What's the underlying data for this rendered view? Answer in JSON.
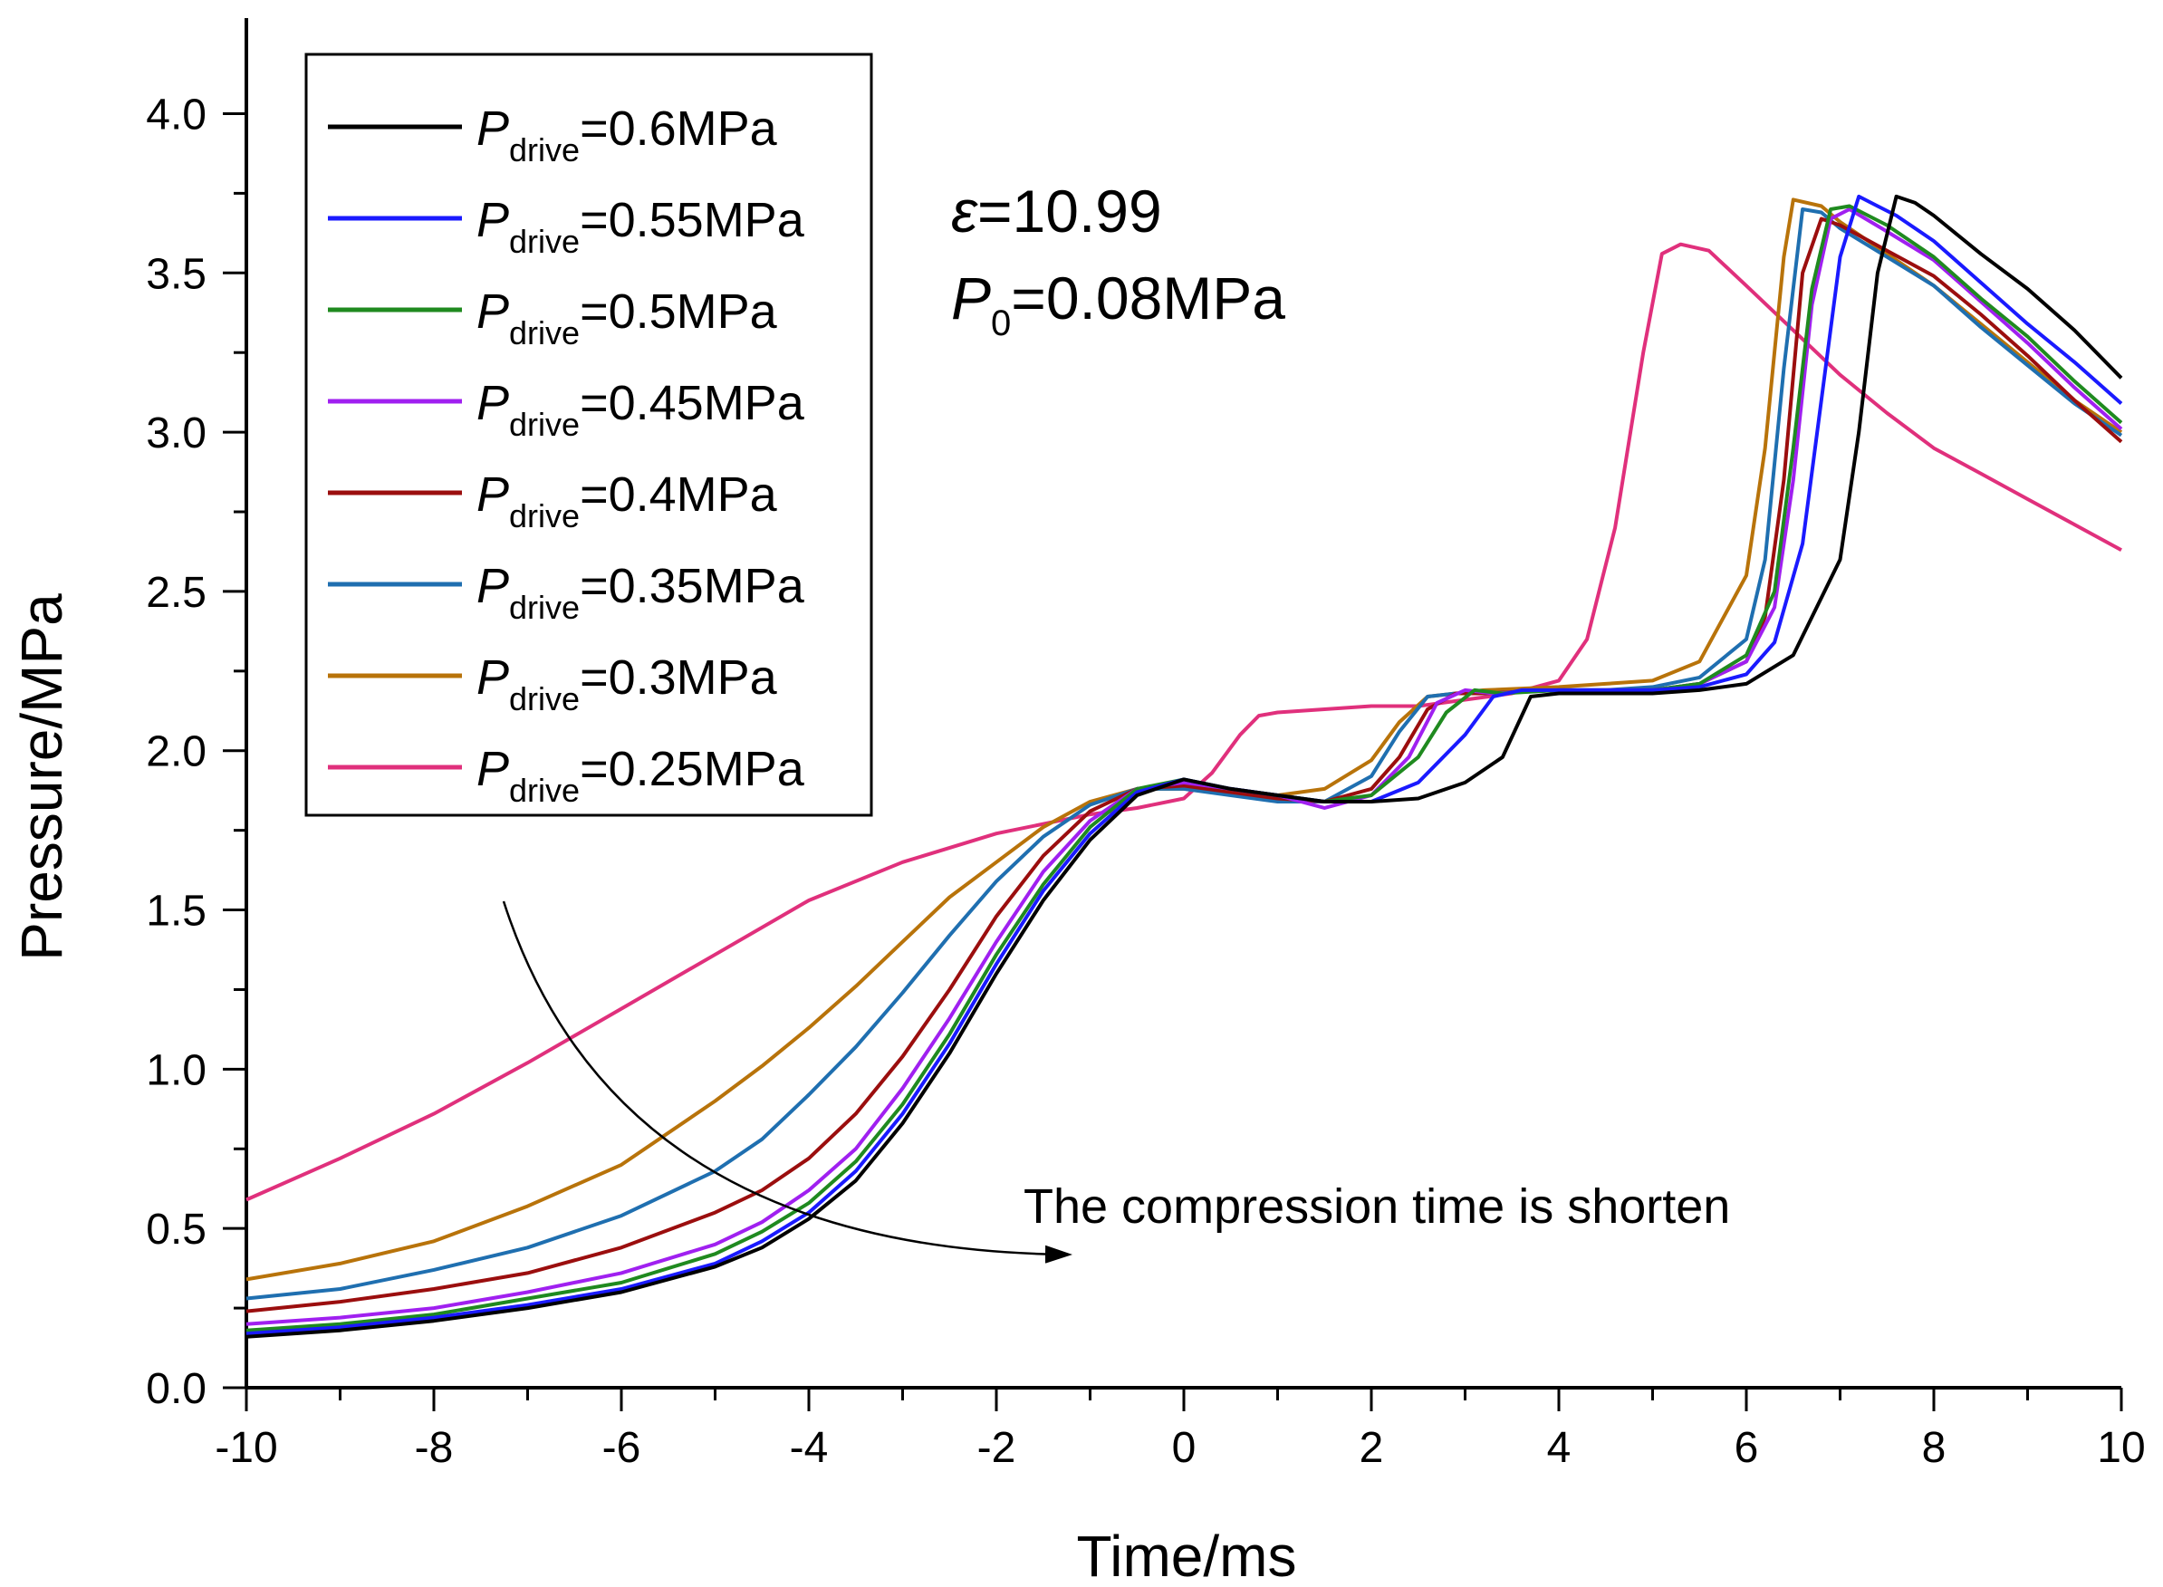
{
  "chart_data": {
    "type": "line",
    "title": "",
    "xlabel": "Time/ms",
    "ylabel": "Pressure/MPa",
    "xlim": [
      -10,
      10
    ],
    "ylim": [
      0.0,
      4.3
    ],
    "x_ticks": [
      "-10",
      "-8",
      "-6",
      "-4",
      "-2",
      "0",
      "2",
      "4",
      "6",
      "8",
      "10"
    ],
    "y_ticks": [
      "0.0",
      "0.5",
      "1.0",
      "1.5",
      "2.0",
      "2.5",
      "3.0",
      "3.5",
      "4.0"
    ],
    "legend_position": "top-left",
    "legend_symbol": "P",
    "legend_subscript": "drive",
    "annotations": {
      "epsilon_symbol": "ε",
      "epsilon_value": "=10.99",
      "p0_symbol": "P",
      "p0_sub": "0",
      "p0_value": "=0.08MPa",
      "note": "The compression time is shorten"
    },
    "series": [
      {
        "name": "=0.6MPa",
        "color": "#000000",
        "x": [
          -10,
          -9,
          -8,
          -7,
          -6,
          -5,
          -4.5,
          -4,
          -3.5,
          -3,
          -2.5,
          -2,
          -1.5,
          -1,
          -0.5,
          0,
          0.5,
          1,
          1.5,
          2,
          2.5,
          3,
          3.4,
          3.7,
          4,
          4.5,
          5,
          5.5,
          6,
          6.5,
          7,
          7.2,
          7.4,
          7.6,
          7.8,
          8,
          8.5,
          9,
          9.5,
          10
        ],
        "y": [
          0.16,
          0.18,
          0.21,
          0.25,
          0.3,
          0.38,
          0.44,
          0.53,
          0.65,
          0.83,
          1.05,
          1.3,
          1.53,
          1.72,
          1.86,
          1.91,
          1.88,
          1.86,
          1.84,
          1.84,
          1.85,
          1.9,
          1.98,
          2.17,
          2.18,
          2.18,
          2.18,
          2.19,
          2.21,
          2.3,
          2.6,
          3.0,
          3.5,
          3.74,
          3.72,
          3.68,
          3.56,
          3.45,
          3.32,
          3.17
        ]
      },
      {
        "name": "=0.55MPa",
        "color": "#1a1aff",
        "x": [
          -10,
          -9,
          -8,
          -7,
          -6,
          -5,
          -4.5,
          -4,
          -3.5,
          -3,
          -2.5,
          -2,
          -1.5,
          -1,
          -0.5,
          0,
          0.5,
          1,
          1.5,
          2,
          2.5,
          3,
          3.3,
          3.6,
          4,
          4.5,
          5,
          5.5,
          6,
          6.3,
          6.6,
          6.8,
          7,
          7.2,
          7.4,
          7.6,
          8,
          8.5,
          9,
          9.5,
          10
        ],
        "y": [
          0.17,
          0.19,
          0.22,
          0.26,
          0.31,
          0.39,
          0.46,
          0.55,
          0.68,
          0.86,
          1.08,
          1.33,
          1.56,
          1.74,
          1.87,
          1.91,
          1.88,
          1.86,
          1.84,
          1.84,
          1.9,
          2.05,
          2.17,
          2.19,
          2.19,
          2.19,
          2.19,
          2.2,
          2.24,
          2.34,
          2.65,
          3.1,
          3.55,
          3.74,
          3.71,
          3.68,
          3.6,
          3.47,
          3.34,
          3.22,
          3.09
        ]
      },
      {
        "name": "=0.5MPa",
        "color": "#1f8a1f",
        "x": [
          -10,
          -9,
          -8,
          -7,
          -6,
          -5,
          -4.5,
          -4,
          -3.5,
          -3,
          -2.5,
          -2,
          -1.5,
          -1,
          -0.5,
          0,
          0.5,
          1,
          1.5,
          2,
          2.5,
          2.8,
          3.1,
          3.4,
          4,
          4.5,
          5,
          5.5,
          6,
          6.3,
          6.5,
          6.7,
          6.9,
          7.1,
          7.5,
          8,
          8.5,
          9,
          9.5,
          10
        ],
        "y": [
          0.18,
          0.2,
          0.23,
          0.28,
          0.33,
          0.42,
          0.49,
          0.58,
          0.71,
          0.89,
          1.11,
          1.36,
          1.58,
          1.76,
          1.88,
          1.91,
          1.88,
          1.86,
          1.84,
          1.86,
          1.98,
          2.12,
          2.19,
          2.18,
          2.19,
          2.19,
          2.19,
          2.21,
          2.3,
          2.5,
          2.95,
          3.45,
          3.7,
          3.71,
          3.65,
          3.55,
          3.42,
          3.3,
          3.16,
          3.03
        ]
      },
      {
        "name": "=0.45MPa",
        "color": "#a020f0",
        "x": [
          -10,
          -9,
          -8,
          -7,
          -6,
          -5,
          -4.5,
          -4,
          -3.5,
          -3,
          -2.5,
          -2,
          -1.5,
          -1,
          -0.5,
          0,
          0.5,
          1,
          1.5,
          2,
          2.4,
          2.7,
          3,
          3.3,
          4,
          4.5,
          5,
          5.5,
          6,
          6.3,
          6.5,
          6.7,
          6.9,
          7.1,
          7.5,
          8,
          8.5,
          9,
          9.5,
          10
        ],
        "y": [
          0.2,
          0.22,
          0.25,
          0.3,
          0.36,
          0.45,
          0.52,
          0.62,
          0.75,
          0.94,
          1.16,
          1.4,
          1.62,
          1.78,
          1.88,
          1.9,
          1.88,
          1.86,
          1.82,
          1.86,
          1.98,
          2.15,
          2.19,
          2.18,
          2.19,
          2.19,
          2.19,
          2.21,
          2.28,
          2.45,
          2.85,
          3.4,
          3.67,
          3.7,
          3.63,
          3.54,
          3.41,
          3.28,
          3.14,
          3.01
        ]
      },
      {
        "name": "=0.4MPa",
        "color": "#9b0e0e",
        "x": [
          -10,
          -9,
          -8,
          -7,
          -6,
          -5,
          -4.5,
          -4,
          -3.5,
          -3,
          -2.5,
          -2,
          -1.5,
          -1,
          -0.5,
          0,
          0.5,
          1,
          1.5,
          2,
          2.3,
          2.6,
          2.9,
          3.2,
          4,
          4.5,
          5,
          5.5,
          6,
          6.2,
          6.4,
          6.6,
          6.8,
          7,
          7.5,
          8,
          8.5,
          9,
          9.5,
          10
        ],
        "y": [
          0.24,
          0.27,
          0.31,
          0.36,
          0.44,
          0.55,
          0.62,
          0.72,
          0.86,
          1.04,
          1.25,
          1.48,
          1.67,
          1.81,
          1.88,
          1.89,
          1.87,
          1.85,
          1.84,
          1.88,
          1.98,
          2.13,
          2.18,
          2.18,
          2.19,
          2.19,
          2.19,
          2.21,
          2.28,
          2.42,
          2.85,
          3.5,
          3.67,
          3.65,
          3.57,
          3.49,
          3.37,
          3.24,
          3.1,
          2.97
        ]
      },
      {
        "name": "=0.35MPa",
        "color": "#1f6fb0",
        "x": [
          -10,
          -9,
          -8,
          -7,
          -6,
          -5,
          -4.5,
          -4,
          -3.5,
          -3,
          -2.5,
          -2,
          -1.5,
          -1,
          -0.5,
          0,
          0.5,
          1,
          1.5,
          2,
          2.3,
          2.6,
          2.9,
          3.2,
          4,
          4.5,
          5,
          5.5,
          6,
          6.2,
          6.4,
          6.6,
          6.8,
          7,
          7.5,
          8,
          8.5,
          9,
          9.5,
          10
        ],
        "y": [
          0.28,
          0.31,
          0.37,
          0.44,
          0.54,
          0.68,
          0.78,
          0.92,
          1.07,
          1.24,
          1.42,
          1.59,
          1.73,
          1.83,
          1.88,
          1.88,
          1.86,
          1.84,
          1.84,
          1.92,
          2.06,
          2.17,
          2.18,
          2.18,
          2.19,
          2.19,
          2.2,
          2.23,
          2.35,
          2.6,
          3.2,
          3.7,
          3.69,
          3.64,
          3.55,
          3.46,
          3.33,
          3.21,
          3.09,
          2.99
        ]
      },
      {
        "name": "=0.3MPa",
        "color": "#b8730a",
        "x": [
          -10,
          -9,
          -8,
          -7,
          -6,
          -5,
          -4.5,
          -4,
          -3.5,
          -3,
          -2.5,
          -2,
          -1.5,
          -1,
          -0.5,
          0,
          0.5,
          1,
          1.5,
          2,
          2.3,
          2.6,
          2.9,
          3.2,
          4,
          4.5,
          5,
          5.5,
          6,
          6.2,
          6.4,
          6.5,
          6.8,
          7,
          7.5,
          8,
          8.5,
          9,
          9.5,
          10
        ],
        "y": [
          0.34,
          0.39,
          0.46,
          0.57,
          0.7,
          0.9,
          1.01,
          1.13,
          1.26,
          1.4,
          1.54,
          1.65,
          1.76,
          1.84,
          1.88,
          1.88,
          1.87,
          1.86,
          1.88,
          1.97,
          2.09,
          2.17,
          2.18,
          2.19,
          2.2,
          2.21,
          2.22,
          2.28,
          2.55,
          2.95,
          3.55,
          3.73,
          3.71,
          3.66,
          3.56,
          3.46,
          3.34,
          3.22,
          3.1,
          3.0
        ]
      },
      {
        "name": "=0.25MPa",
        "color": "#e0307c",
        "x": [
          -10,
          -9,
          -8,
          -7,
          -6,
          -5,
          -4,
          -3,
          -2,
          -1,
          -0.5,
          0,
          0.3,
          0.6,
          0.8,
          1,
          1.5,
          2,
          2.5,
          3,
          3.5,
          4,
          4.3,
          4.6,
          4.9,
          5.1,
          5.3,
          5.6,
          6,
          6.5,
          7,
          7.5,
          8,
          8.5,
          9,
          9.5,
          10
        ],
        "y": [
          0.59,
          0.72,
          0.86,
          1.02,
          1.19,
          1.36,
          1.53,
          1.65,
          1.74,
          1.8,
          1.82,
          1.85,
          1.93,
          2.05,
          2.11,
          2.12,
          2.13,
          2.14,
          2.14,
          2.16,
          2.18,
          2.22,
          2.35,
          2.7,
          3.25,
          3.56,
          3.59,
          3.57,
          3.46,
          3.32,
          3.18,
          3.06,
          2.95,
          2.87,
          2.79,
          2.71,
          2.63
        ]
      }
    ]
  }
}
